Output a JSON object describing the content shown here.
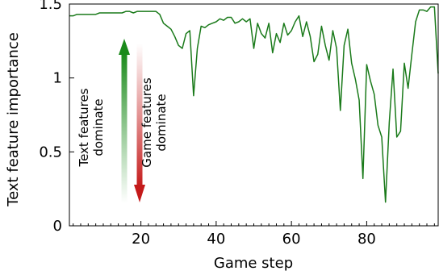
{
  "chart_data": {
    "type": "line",
    "title": "",
    "xlabel": "Game step",
    "ylabel": "Text feature importance",
    "xlim": [
      1,
      99
    ],
    "ylim": [
      0,
      1.5
    ],
    "x_ticks": [
      20,
      40,
      60,
      80
    ],
    "x_tick_labels": [
      "20",
      "40",
      "60",
      "80"
    ],
    "y_ticks": [
      0,
      0.5,
      1,
      1.5
    ],
    "y_tick_labels": [
      "0",
      "0.5",
      "1",
      "1.5"
    ],
    "grid": false,
    "legend": "none",
    "series": [
      {
        "color": "#1a7a1a",
        "x": [
          1,
          2,
          3,
          4,
          5,
          6,
          7,
          8,
          9,
          10,
          11,
          12,
          13,
          14,
          15,
          16,
          17,
          18,
          19,
          20,
          21,
          22,
          23,
          24,
          25,
          26,
          27,
          28,
          29,
          30,
          31,
          32,
          33,
          34,
          35,
          36,
          37,
          38,
          39,
          40,
          41,
          42,
          43,
          44,
          45,
          46,
          47,
          48,
          49,
          50,
          51,
          52,
          53,
          54,
          55,
          56,
          57,
          58,
          59,
          60,
          61,
          62,
          63,
          64,
          65,
          66,
          67,
          68,
          69,
          70,
          71,
          72,
          73,
          74,
          75,
          76,
          77,
          78,
          79,
          80,
          81,
          82,
          83,
          84,
          85,
          86,
          87,
          88,
          89,
          90,
          91,
          92,
          93,
          94,
          95,
          96,
          97,
          98,
          99
        ],
        "values": [
          1.42,
          1.42,
          1.43,
          1.43,
          1.43,
          1.43,
          1.43,
          1.43,
          1.44,
          1.44,
          1.44,
          1.44,
          1.44,
          1.44,
          1.44,
          1.45,
          1.45,
          1.44,
          1.45,
          1.45,
          1.45,
          1.45,
          1.45,
          1.45,
          1.43,
          1.37,
          1.35,
          1.33,
          1.28,
          1.22,
          1.2,
          1.3,
          1.32,
          0.88,
          1.2,
          1.35,
          1.34,
          1.36,
          1.37,
          1.38,
          1.4,
          1.39,
          1.41,
          1.41,
          1.37,
          1.38,
          1.4,
          1.38,
          1.4,
          1.2,
          1.37,
          1.3,
          1.27,
          1.37,
          1.17,
          1.3,
          1.24,
          1.37,
          1.29,
          1.32,
          1.38,
          1.42,
          1.28,
          1.38,
          1.28,
          1.11,
          1.16,
          1.35,
          1.22,
          1.12,
          1.32,
          1.2,
          0.78,
          1.22,
          1.33,
          1.1,
          0.99,
          0.85,
          0.32,
          1.09,
          0.98,
          0.89,
          0.68,
          0.6,
          0.16,
          0.7,
          1.06,
          0.6,
          0.64,
          1.1,
          0.93,
          1.16,
          1.38,
          1.46,
          1.46,
          1.45,
          1.48,
          1.48,
          1.03
        ]
      }
    ]
  },
  "annotations": {
    "text_features": "Text features\ndominate",
    "game_features": "Game features\ndominate",
    "text_color": "#1a8a1a",
    "game_color": "#c41a1a"
  }
}
